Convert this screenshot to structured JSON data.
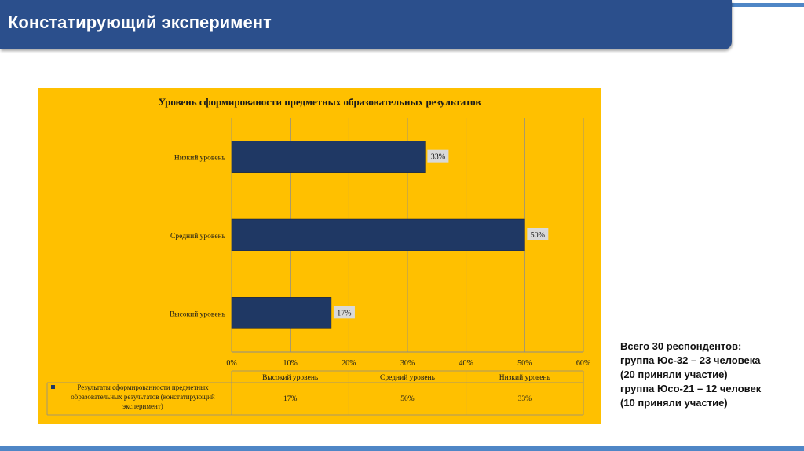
{
  "header": {
    "title": "Констатирующий эксперимент"
  },
  "chart_data": {
    "type": "bar",
    "orientation": "horizontal",
    "title": "Уровень сформированости предметных образовательных результатов",
    "categories": [
      "Высокий уровень",
      "Средний уровень",
      "Низкий уровень"
    ],
    "series": [
      {
        "name": "Результаты сформированности предметных образовательных результатов (констатирующий эксперимент)",
        "values": [
          17,
          50,
          33
        ]
      }
    ],
    "data_labels": [
      "17%",
      "50%",
      "33%"
    ],
    "xlim": [
      0,
      60
    ],
    "xticks": [
      "0%",
      "10%",
      "20%",
      "30%",
      "40%",
      "50%",
      "60%"
    ],
    "grid": true,
    "data_table": {
      "headers": [
        "Высокий уровень",
        "Средний уровень",
        "Низкий уровень"
      ],
      "row_label": "Результаты сформированности предметных образовательных результатов (констатирующий эксперимент)",
      "row_label_lines": [
        "Результаты сформированности предметных",
        "образовательных результатов (констатирующий",
        "эксперимент)"
      ],
      "values": [
        "17%",
        "50%",
        "33%"
      ]
    },
    "colors": {
      "bar": "#1f3864",
      "background": "#ffc000",
      "label_bg": "#d9d9d9",
      "grid": "#8c8c8c"
    }
  },
  "note": {
    "lines": [
      "Всего 30 респондентов:",
      "группа Юс-32 – 23 человека",
      "(20 приняли участие)",
      "группа Юсо-21 – 12 человек",
      "(10 приняли участие)"
    ]
  }
}
